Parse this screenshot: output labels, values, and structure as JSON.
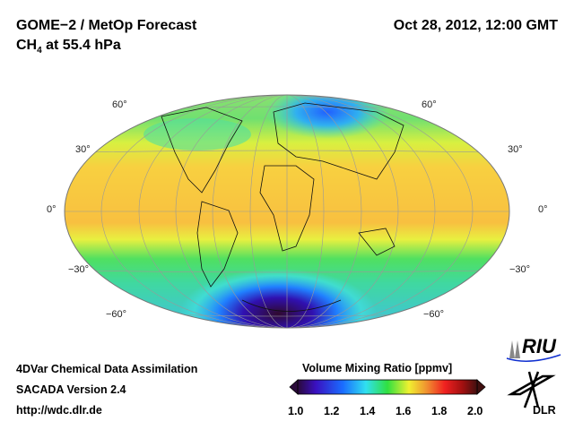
{
  "header": {
    "title": "GOME−2 / MetOp Forecast",
    "species": "CH",
    "species_sub": "4",
    "level": " at 55.4 hPa",
    "datetime": "Oct 28, 2012, 12:00 GMT"
  },
  "map": {
    "projection": "Hammer/Mollweide global",
    "lat_labels_left": [
      "60°",
      "30°",
      "0°",
      "−30°",
      "−60°"
    ],
    "lat_labels_right": [
      "60°",
      "30°",
      "0°",
      "−30°",
      "−60°"
    ]
  },
  "footer": {
    "line1": "4DVar Chemical Data Assimilation",
    "line2": "SACADA Version 2.4",
    "line3": "http://wdc.dlr.de"
  },
  "colorbar": {
    "title": "Volume Mixing Ratio [ppmv]",
    "ticks": [
      "1.0",
      "1.2",
      "1.4",
      "1.6",
      "1.8",
      "2.0"
    ],
    "range": [
      1.0,
      2.0
    ],
    "colors": [
      "#2a0a3a",
      "#3a10c0",
      "#1a6cff",
      "#30e0f0",
      "#30e040",
      "#f0f030",
      "#f09030",
      "#f02020",
      "#a01010",
      "#401010"
    ]
  },
  "logos": {
    "riu": "RIU",
    "dlr": "DLR"
  }
}
